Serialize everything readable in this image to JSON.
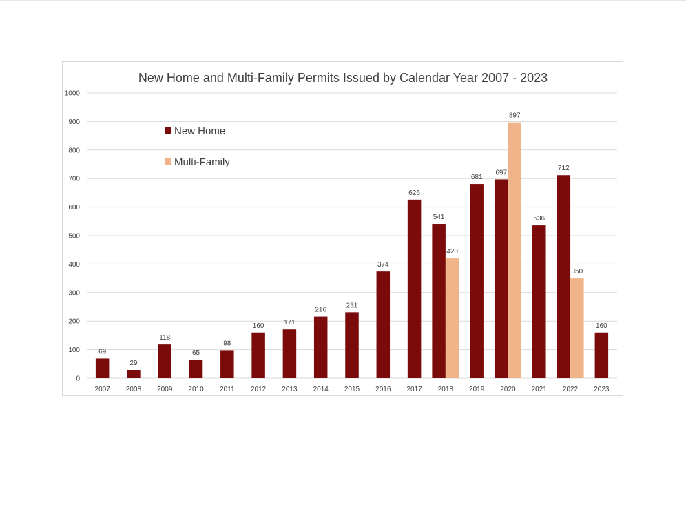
{
  "chart_data": {
    "type": "bar",
    "title": "New Home and Multi-Family Permits Issued by Calendar Year 2007 - 2023",
    "xlabel": "",
    "ylabel": "",
    "ylim": [
      0,
      1000
    ],
    "yticks": [
      0,
      100,
      200,
      300,
      400,
      500,
      600,
      700,
      800,
      900,
      1000
    ],
    "grid": true,
    "legend_position": "top-left",
    "categories": [
      "2007",
      "2008",
      "2009",
      "2010",
      "2011",
      "2012",
      "2013",
      "2014",
      "2015",
      "2016",
      "2017",
      "2018",
      "2019",
      "2020",
      "2021",
      "2022",
      "2023"
    ],
    "series": [
      {
        "name": "New Home",
        "color": "#7b0a0a",
        "values": [
          69,
          29,
          118,
          65,
          98,
          160,
          171,
          216,
          231,
          374,
          626,
          541,
          681,
          697,
          536,
          712,
          160
        ]
      },
      {
        "name": "Multi-Family",
        "color": "#f0b48a",
        "values": [
          null,
          null,
          null,
          null,
          null,
          null,
          null,
          null,
          null,
          null,
          null,
          420,
          null,
          897,
          null,
          350,
          null
        ]
      }
    ]
  }
}
